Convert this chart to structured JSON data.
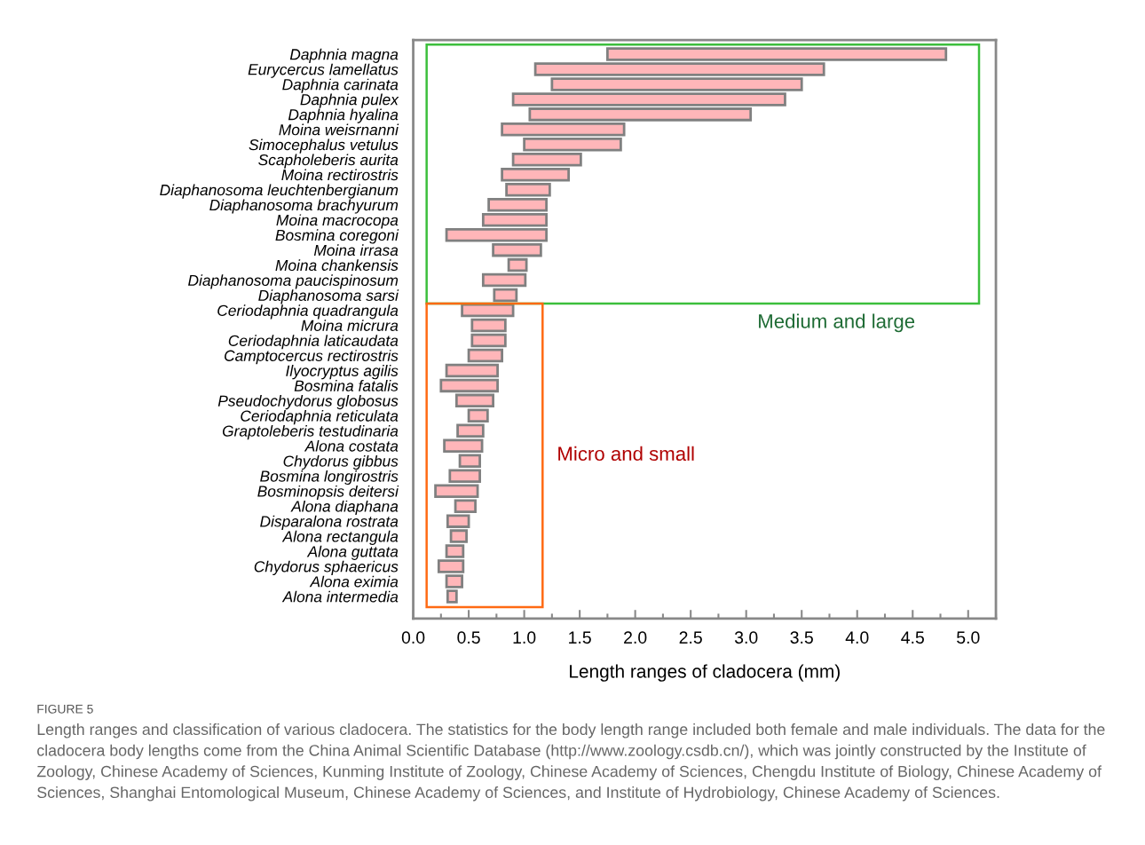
{
  "chart_data": {
    "type": "bar",
    "orientation": "horizontal",
    "xlabel": "Length ranges of cladocera (mm)",
    "categories": [
      "Daphnia magna",
      "Eurycercus lamellatus",
      "Daphnia carinata",
      "Daphnia pulex",
      "Daphnia hyalina",
      "Moina weisrnanni",
      "Simocephalus vetulus",
      "Scapholeberis aurita",
      "Moina rectirostris",
      "Diaphanosoma leuchtenbergianum",
      "Diaphanosoma brachyurum",
      "Moina macrocopa",
      "Bosmina coregoni",
      "Moina irrasa",
      "Moina chankensis",
      "Diaphanosoma paucispinosum",
      "Diaphanosoma sarsi",
      "Ceriodaphnia quadrangula",
      "Moina micrura",
      "Ceriodaphnia laticaudata",
      "Camptocercus rectirostris",
      "Ilyocryptus agilis",
      "Bosmina fatalis",
      "Pseudochydorus globosus",
      "Ceriodaphnia reticulata",
      "Graptoleberis testudinaria",
      "Alona costata",
      "Chydorus gibbus",
      "Bosmina longirostris",
      "Bosminopsis deitersi",
      "Alona diaphana",
      "Disparalona rostrata",
      "Alona rectangula",
      "Alona guttata",
      "Chydorus sphaericus",
      "Alona eximia",
      "Alona intermedia"
    ],
    "base": [
      1.75,
      1.1,
      1.25,
      0.9,
      1.05,
      0.8,
      1.0,
      0.9,
      0.8,
      0.84,
      0.68,
      0.63,
      0.3,
      0.72,
      0.86,
      0.63,
      0.73,
      0.44,
      0.53,
      0.53,
      0.5,
      0.3,
      0.25,
      0.39,
      0.5,
      0.4,
      0.28,
      0.42,
      0.33,
      0.2,
      0.38,
      0.31,
      0.34,
      0.3,
      0.23,
      0.3,
      0.31
    ],
    "values": [
      3.05,
      2.6,
      2.25,
      2.45,
      1.99,
      1.1,
      0.87,
      0.61,
      0.6,
      0.39,
      0.52,
      0.57,
      0.9,
      0.43,
      0.16,
      0.38,
      0.2,
      0.46,
      0.3,
      0.3,
      0.3,
      0.46,
      0.51,
      0.33,
      0.17,
      0.23,
      0.34,
      0.18,
      0.27,
      0.38,
      0.18,
      0.19,
      0.14,
      0.15,
      0.22,
      0.14,
      0.08
    ],
    "color": "#ffb6b9",
    "xlim": [
      0,
      5.25
    ],
    "xticks": [
      {
        "value": 0,
        "label": "0.0"
      },
      {
        "value": 0.5,
        "label": "0.5"
      },
      {
        "value": 1,
        "label": "1.0"
      },
      {
        "value": 1.5,
        "label": "1.5"
      },
      {
        "value": 2,
        "label": "2.0"
      },
      {
        "value": 2.5,
        "label": "2.5"
      },
      {
        "value": 3,
        "label": "3.0"
      },
      {
        "value": 3.5,
        "label": "3.5"
      },
      {
        "value": 4,
        "label": "4.0"
      },
      {
        "value": 4.5,
        "label": "4.5"
      },
      {
        "value": 5,
        "label": "5.0"
      }
    ],
    "annotations": [
      "Medium and large",
      "Micro and small",
      "FIGURE 5",
      "Length ranges and classification of various cladocera. The statistics for the body length range included both female and male individuals. The data for the cladocera body lengths come from the China Animal Scientific Database (http://www.zoology.csdb.cn/), which was jointly constructed by the Institute of Zoology, Chinese Academy of Sciences, Kunming Institute of Zoology, Chinese Academy of Sciences, Chengdu Institute of Biology, Chinese Academy of Sciences, Shanghai Entomological Museum, Chinese Academy of Sciences, and Institute of Hydrobiology, Chinese Academy of Sciences."
    ],
    "grid": false,
    "legend": false
  }
}
